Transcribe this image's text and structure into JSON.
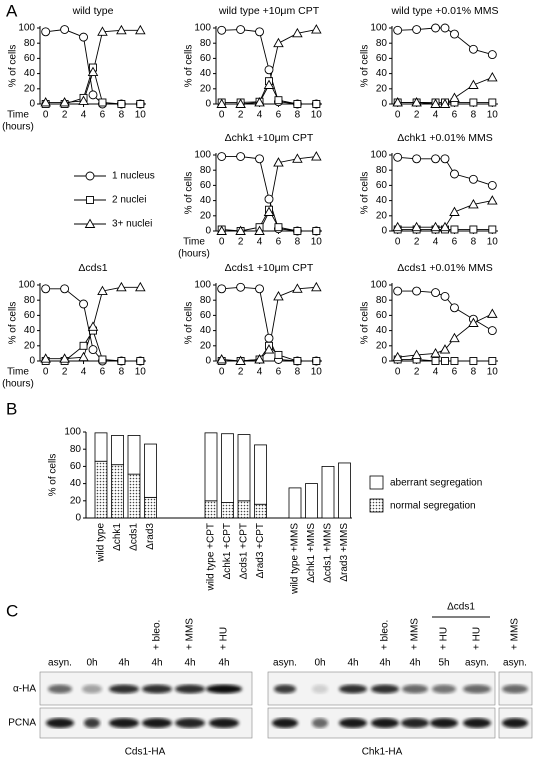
{
  "panel_labels": [
    "A",
    "B",
    "C"
  ],
  "chart_data": [
    {
      "type": "line",
      "title": "wild type",
      "ylabel": "% of cells",
      "xlabel_lines": [
        "Time",
        "(hours)"
      ],
      "x": [
        0,
        2,
        4,
        5,
        6,
        8,
        10
      ],
      "xlim": [
        -0.6,
        10.6
      ],
      "xticks": [
        0,
        2,
        4,
        6,
        8,
        10
      ],
      "ylim": [
        0,
        100
      ],
      "yticks": [
        0,
        20,
        40,
        60,
        80,
        100
      ],
      "series": [
        {
          "name": "1 nucleus",
          "marker": "circle",
          "color": "#000000",
          "values": [
            95,
            98,
            88,
            12,
            0,
            0,
            0
          ]
        },
        {
          "name": "2 nuclei",
          "marker": "square",
          "color": "#000000",
          "values": [
            0,
            0,
            8,
            48,
            2,
            0,
            0
          ]
        },
        {
          "name": "3+ nuclei",
          "marker": "triangle",
          "color": "#000000",
          "values": [
            2,
            2,
            4,
            42,
            95,
            97,
            97
          ]
        }
      ]
    },
    {
      "type": "line",
      "title": "wild type +10μm CPT",
      "ylabel": "% of cells",
      "x": [
        0,
        2,
        4,
        5,
        6,
        8,
        10
      ],
      "xlim": [
        -0.6,
        10.6
      ],
      "xticks": [
        0,
        2,
        4,
        6,
        8,
        10
      ],
      "ylim": [
        0,
        100
      ],
      "yticks": [
        0,
        20,
        40,
        60,
        80,
        100
      ],
      "series": [
        {
          "name": "1 nucleus",
          "marker": "circle",
          "color": "#000000",
          "values": [
            97,
            98,
            95,
            45,
            3,
            0,
            0
          ]
        },
        {
          "name": "2 nuclei",
          "marker": "square",
          "color": "#000000",
          "values": [
            2,
            2,
            3,
            30,
            5,
            0,
            0
          ]
        },
        {
          "name": "3+ nuclei",
          "marker": "triangle",
          "color": "#000000",
          "values": [
            0,
            0,
            2,
            25,
            80,
            93,
            98
          ]
        }
      ]
    },
    {
      "type": "line",
      "title": "wild type +0.01% MMS",
      "ylabel": "% of cells",
      "x": [
        0,
        2,
        4,
        5,
        6,
        8,
        10
      ],
      "xlim": [
        -0.6,
        10.6
      ],
      "xticks": [
        0,
        2,
        4,
        6,
        8,
        10
      ],
      "ylim": [
        0,
        100
      ],
      "yticks": [
        0,
        20,
        40,
        60,
        80,
        100
      ],
      "series": [
        {
          "name": "1 nucleus",
          "marker": "circle",
          "color": "#000000",
          "values": [
            97,
            98,
            100,
            100,
            92,
            72,
            65
          ]
        },
        {
          "name": "2 nuclei",
          "marker": "square",
          "color": "#000000",
          "values": [
            2,
            2,
            2,
            2,
            2,
            2,
            2
          ]
        },
        {
          "name": "3+ nuclei",
          "marker": "triangle",
          "color": "#000000",
          "values": [
            2,
            2,
            0,
            0,
            8,
            25,
            35
          ]
        }
      ]
    },
    {
      "type": "line",
      "title": "Δchk1 +10μm CPT",
      "ylabel": "% of cells",
      "xlabel_lines": [
        "Time",
        "(hours)"
      ],
      "x": [
        0,
        2,
        4,
        5,
        6,
        8,
        10
      ],
      "xlim": [
        -0.6,
        10.6
      ],
      "xticks": [
        0,
        2,
        4,
        6,
        8,
        10
      ],
      "ylim": [
        0,
        100
      ],
      "yticks": [
        0,
        20,
        40,
        60,
        80,
        100
      ],
      "series": [
        {
          "name": "1 nucleus",
          "marker": "circle",
          "color": "#000000",
          "values": [
            98,
            98,
            95,
            42,
            3,
            0,
            0
          ]
        },
        {
          "name": "2 nuclei",
          "marker": "square",
          "color": "#000000",
          "values": [
            2,
            0,
            5,
            28,
            5,
            0,
            0
          ]
        },
        {
          "name": "3+ nuclei",
          "marker": "triangle",
          "color": "#000000",
          "values": [
            0,
            0,
            0,
            25,
            90,
            95,
            98
          ]
        }
      ]
    },
    {
      "type": "line",
      "title": "Δchk1 +0.01% MMS",
      "ylabel": "% of cells",
      "x": [
        0,
        2,
        4,
        5,
        6,
        8,
        10
      ],
      "xlim": [
        -0.6,
        10.6
      ],
      "xticks": [
        0,
        2,
        4,
        6,
        8,
        10
      ],
      "ylim": [
        0,
        100
      ],
      "yticks": [
        0,
        20,
        40,
        60,
        80,
        100
      ],
      "series": [
        {
          "name": "1 nucleus",
          "marker": "circle",
          "color": "#000000",
          "values": [
            97,
            95,
            95,
            95,
            75,
            68,
            60
          ]
        },
        {
          "name": "2 nuclei",
          "marker": "square",
          "color": "#000000",
          "values": [
            2,
            2,
            2,
            2,
            2,
            2,
            2
          ]
        },
        {
          "name": "3+ nuclei",
          "marker": "triangle",
          "color": "#000000",
          "values": [
            5,
            5,
            5,
            5,
            25,
            35,
            40
          ]
        }
      ]
    },
    {
      "type": "line",
      "title": "Δcds1",
      "ylabel": "% of cells",
      "xlabel_lines": [
        "Time",
        "(hours)"
      ],
      "x": [
        0,
        2,
        4,
        5,
        6,
        8,
        10
      ],
      "xlim": [
        -0.6,
        10.6
      ],
      "xticks": [
        0,
        2,
        4,
        6,
        8,
        10
      ],
      "ylim": [
        0,
        100
      ],
      "yticks": [
        0,
        20,
        40,
        60,
        80,
        100
      ],
      "series": [
        {
          "name": "1 nucleus",
          "marker": "circle",
          "color": "#000000",
          "values": [
            95,
            95,
            75,
            15,
            0,
            0,
            0
          ]
        },
        {
          "name": "2 nuclei",
          "marker": "square",
          "color": "#000000",
          "values": [
            0,
            0,
            20,
            40,
            2,
            0,
            0
          ]
        },
        {
          "name": "3+ nuclei",
          "marker": "triangle",
          "color": "#000000",
          "values": [
            3,
            3,
            5,
            45,
            92,
            97,
            97
          ]
        }
      ]
    },
    {
      "type": "line",
      "title": "Δcds1 +10μm CPT",
      "ylabel": "% of cells",
      "x": [
        0,
        2,
        4,
        5,
        6,
        8,
        10
      ],
      "xlim": [
        -0.6,
        10.6
      ],
      "xticks": [
        0,
        2,
        4,
        6,
        8,
        10
      ],
      "ylim": [
        0,
        100
      ],
      "yticks": [
        0,
        20,
        40,
        60,
        80,
        100
      ],
      "series": [
        {
          "name": "1 nucleus",
          "marker": "circle",
          "color": "#000000",
          "values": [
            95,
            97,
            95,
            30,
            2,
            0,
            0
          ]
        },
        {
          "name": "2 nuclei",
          "marker": "square",
          "color": "#000000",
          "values": [
            0,
            0,
            2,
            20,
            8,
            0,
            0
          ]
        },
        {
          "name": "3+ nuclei",
          "marker": "triangle",
          "color": "#000000",
          "values": [
            2,
            0,
            2,
            15,
            85,
            95,
            97
          ]
        }
      ]
    },
    {
      "type": "line",
      "title": "Δcds1 +0.01% MMS",
      "ylabel": "% of cells",
      "x": [
        0,
        2,
        4,
        5,
        6,
        8,
        10
      ],
      "xlim": [
        -0.6,
        10.6
      ],
      "xticks": [
        0,
        2,
        4,
        6,
        8,
        10
      ],
      "ylim": [
        0,
        100
      ],
      "yticks": [
        0,
        20,
        40,
        60,
        80,
        100
      ],
      "series": [
        {
          "name": "1 nucleus",
          "marker": "circle",
          "color": "#000000",
          "values": [
            92,
            92,
            90,
            85,
            70,
            55,
            40
          ]
        },
        {
          "name": "2 nuclei",
          "marker": "square",
          "color": "#000000",
          "values": [
            2,
            2,
            0,
            0,
            0,
            0,
            0
          ]
        },
        {
          "name": "3+ nuclei",
          "marker": "triangle",
          "color": "#000000",
          "values": [
            5,
            8,
            10,
            15,
            30,
            50,
            62
          ]
        }
      ]
    },
    {
      "type": "bar",
      "stacked": true,
      "ylabel": "% of cells",
      "ylim": [
        0,
        100
      ],
      "yticks": [
        0,
        20,
        40,
        60,
        80,
        100
      ],
      "categories": [
        "wild type",
        "Δchk1",
        "Δcds1",
        "Δrad3",
        "wild type +CPT",
        "Δchk1 +CPT",
        "Δcds1 +CPT",
        "Δrad3 +CPT",
        "wild type +MMS",
        "Δchk1 +MMS",
        "Δcds1 +MMS",
        "Δrad3 +MMS"
      ],
      "series": [
        {
          "name": "normal segregation",
          "color": "#dddddd",
          "pattern": "dots",
          "values": [
            66,
            62,
            51,
            24,
            20,
            18,
            20,
            16,
            0,
            0,
            0,
            0
          ]
        },
        {
          "name": "aberrant segregation",
          "color": "#ffffff",
          "values": [
            33,
            34,
            45,
            62,
            79,
            80,
            77,
            69,
            35,
            40,
            60,
            64
          ]
        }
      ]
    }
  ],
  "blot": {
    "left": {
      "lanes": [
        {
          "time": "asyn."
        },
        {
          "time": "0h"
        },
        {
          "time": "4h"
        },
        {
          "time": "4h",
          "treatment": "+ bleo."
        },
        {
          "time": "4h",
          "treatment": "+ MMS"
        },
        {
          "time": "4h",
          "treatment": "+ HU"
        }
      ],
      "rows": [
        "α-HA",
        "PCNA"
      ],
      "caption": "Cds1-HA"
    },
    "right": {
      "lanes": [
        {
          "time": "asyn."
        },
        {
          "time": "0h"
        },
        {
          "time": "4h"
        },
        {
          "time": "4h",
          "treatment": "+ bleo."
        },
        {
          "time": "4h",
          "treatment": "+ MMS"
        },
        {
          "time": "5h",
          "treatment": "+ HU"
        },
        {
          "time": "asyn.",
          "treatment": "+ HU"
        },
        {
          "time": "asyn.",
          "treatment": "+ MMS"
        }
      ],
      "group_label": "Δcds1",
      "caption": "Chk1-HA"
    }
  }
}
